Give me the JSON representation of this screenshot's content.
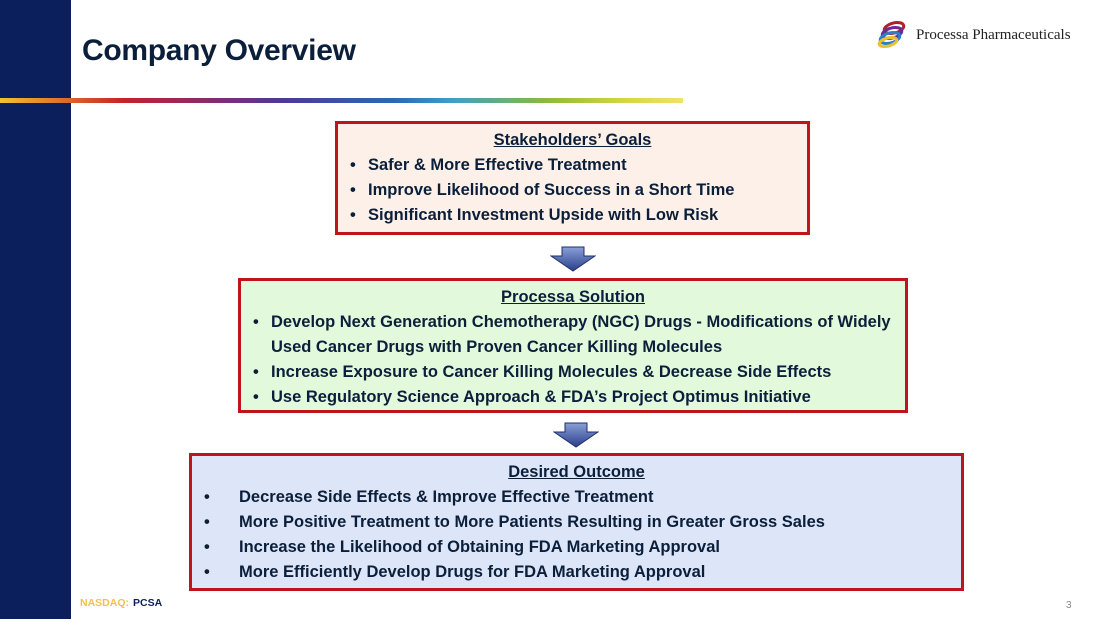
{
  "title": "Company Overview",
  "logo": {
    "text": "Processa Pharmaceuticals",
    "icon": "ribbon-rings-logo"
  },
  "boxes": [
    {
      "heading": "Stakeholders’ Goals",
      "items": [
        "Safer & More Effective Treatment",
        "Improve Likelihood of Success in a Short Time",
        "Significant Investment Upside with Low Risk"
      ]
    },
    {
      "heading": "Processa Solution",
      "items": [
        "Develop Next Generation Chemotherapy (NGC) Drugs - Modifications of Widely Used Cancer Drugs with Proven Cancer Killing Molecules",
        "Increase Exposure to Cancer Killing Molecules & Decrease Side Effects",
        "Use Regulatory Science Approach & FDA’s Project Optimus Initiative"
      ]
    },
    {
      "heading": "Desired Outcome",
      "items": [
        "Decrease Side Effects & Improve Effective Treatment",
        "More Positive Treatment to More Patients Resulting in Greater Gross Sales",
        "Increase the Likelihood of Obtaining FDA Marketing Approval",
        "More Efficiently Develop Drugs for FDA Marketing Approval"
      ]
    }
  ],
  "footer": {
    "exchange": "NASDAQ:",
    "ticker": "PCSA"
  },
  "page_number": "3",
  "colors": {
    "sidebar": "#0b1f5c",
    "border": "#c0141c",
    "box1": "#fdf0e8",
    "box2": "#e2f9dc",
    "box3": "#dde5f8"
  }
}
